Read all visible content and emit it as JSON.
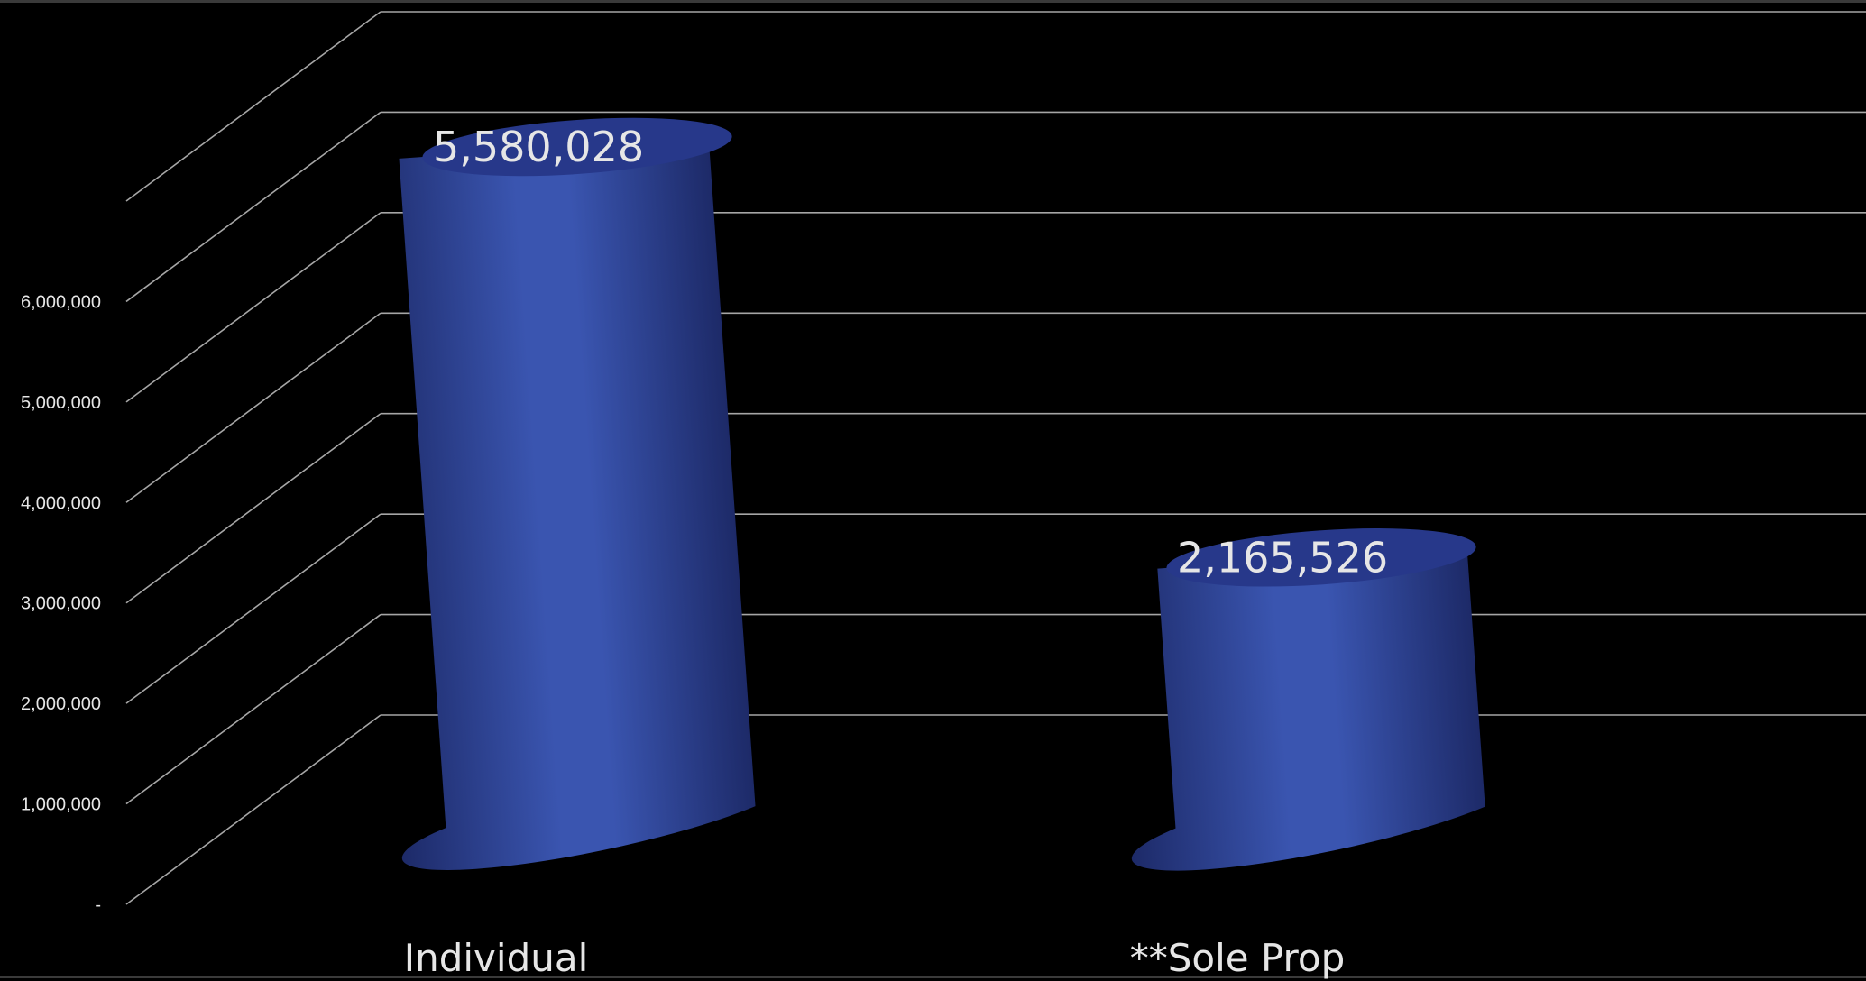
{
  "chart_data": {
    "type": "bar",
    "style": "3d-cylinder",
    "categories": [
      "Individual",
      "**Sole Prop"
    ],
    "values": [
      5580028,
      2165526
    ],
    "value_labels": [
      "5,580,028",
      "2,165,526"
    ],
    "y_ticks": [
      {
        "value": 0,
        "label": "-"
      },
      {
        "value": 1000000,
        "label": "1,000,000"
      },
      {
        "value": 2000000,
        "label": "2,000,000"
      },
      {
        "value": 3000000,
        "label": "3,000,000"
      },
      {
        "value": 4000000,
        "label": "4,000,000"
      },
      {
        "value": 5000000,
        "label": "5,000,000"
      },
      {
        "value": 6000000,
        "label": "6,000,000"
      }
    ],
    "ylim": [
      0,
      7000000
    ],
    "grid": true,
    "legend": "none",
    "title": "",
    "xlabel": "",
    "ylabel": "",
    "colors": {
      "background": "#000000",
      "bar_light": "#3a55b0",
      "bar_dark": "#1d2a68",
      "bar_top": "#27388a",
      "gridline": "#a6a6a6",
      "text": "#e6e6e6"
    }
  }
}
